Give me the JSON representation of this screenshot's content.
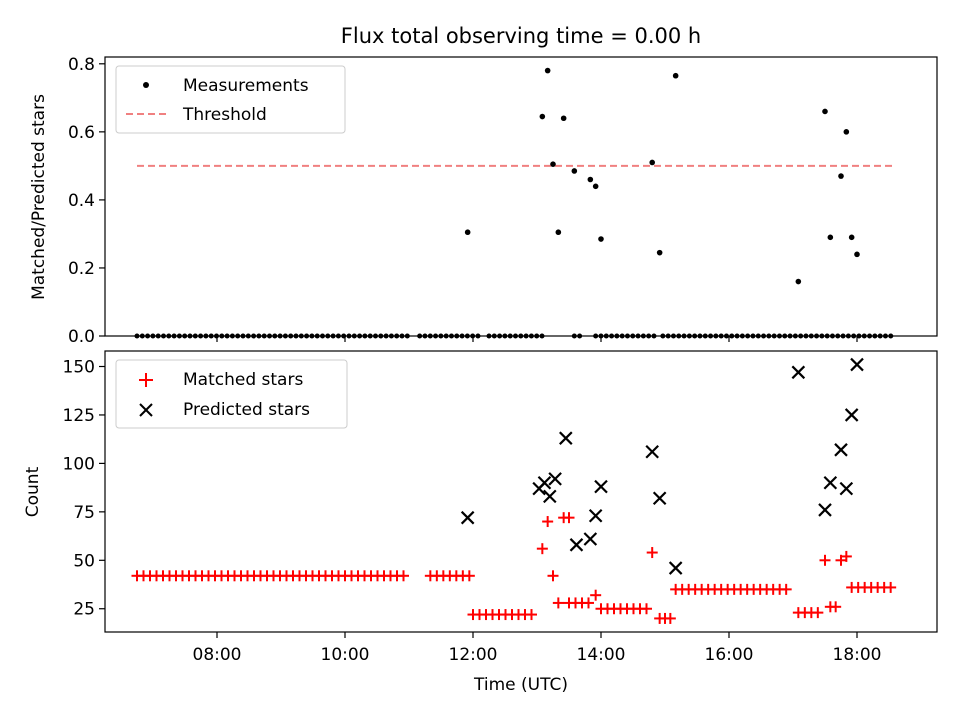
{
  "figure": {
    "title": "Flux total observing time = 0.00 h"
  },
  "colors": {
    "measurement": "#000000",
    "threshold": "#f08080",
    "matched": "#ff0000",
    "predicted": "#000000"
  },
  "chart_data": [
    {
      "type": "scatter",
      "panel": "top",
      "title": "Flux total observing time = 0.00 h",
      "xlabel": "",
      "ylabel": "Matched/Predicted stars",
      "xlim": [
        "06:15",
        "19:15"
      ],
      "ylim": [
        0,
        0.82
      ],
      "yticks": [
        0.0,
        0.2,
        0.4,
        0.6,
        0.8
      ],
      "ytick_labels": [
        "0.0",
        "0.2",
        "0.4",
        "0.6",
        "0.8"
      ],
      "xticks": [
        "08:00",
        "10:00",
        "12:00",
        "14:00",
        "16:00",
        "18:00"
      ],
      "legend": {
        "position": "top-left",
        "entries": [
          "Measurements",
          "Threshold"
        ]
      },
      "threshold": {
        "name": "Threshold",
        "value": 0.5,
        "x_range": [
          "06:45",
          "18:35"
        ]
      },
      "zero_segments": [
        [
          "06:45",
          "11:00"
        ],
        [
          "11:10",
          "12:05"
        ],
        [
          "12:15",
          "13:05"
        ],
        [
          "13:35",
          "13:42"
        ],
        [
          "13:55",
          "14:50"
        ],
        [
          "14:58",
          "18:35"
        ]
      ],
      "series": [
        {
          "name": "Measurements",
          "points": [
            {
              "x": "11:55",
              "y": 0.305
            },
            {
              "x": "13:05",
              "y": 0.645
            },
            {
              "x": "13:10",
              "y": 0.78
            },
            {
              "x": "13:15",
              "y": 0.505
            },
            {
              "x": "13:20",
              "y": 0.305
            },
            {
              "x": "13:25",
              "y": 0.64
            },
            {
              "x": "13:35",
              "y": 0.485
            },
            {
              "x": "13:50",
              "y": 0.46
            },
            {
              "x": "13:55",
              "y": 0.44
            },
            {
              "x": "14:00",
              "y": 0.285
            },
            {
              "x": "14:48",
              "y": 0.51
            },
            {
              "x": "14:55",
              "y": 0.245
            },
            {
              "x": "15:10",
              "y": 0.765
            },
            {
              "x": "17:05",
              "y": 0.16
            },
            {
              "x": "17:30",
              "y": 0.66
            },
            {
              "x": "17:35",
              "y": 0.29
            },
            {
              "x": "17:45",
              "y": 0.47
            },
            {
              "x": "17:50",
              "y": 0.6
            },
            {
              "x": "17:55",
              "y": 0.29
            },
            {
              "x": "18:00",
              "y": 0.24
            }
          ]
        }
      ]
    },
    {
      "type": "scatter",
      "panel": "bottom",
      "xlabel": "Time (UTC)",
      "ylabel": "Count",
      "xlim": [
        "06:15",
        "19:15"
      ],
      "ylim": [
        13,
        158
      ],
      "yticks": [
        25,
        50,
        75,
        100,
        125,
        150
      ],
      "ytick_labels": [
        "25",
        "50",
        "75",
        "100",
        "125",
        "150"
      ],
      "xticks": [
        "08:00",
        "10:00",
        "12:00",
        "14:00",
        "16:00",
        "18:00"
      ],
      "xtick_labels": [
        "08:00",
        "10:00",
        "12:00",
        "14:00",
        "16:00",
        "18:00"
      ],
      "legend": {
        "position": "top-left",
        "entries": [
          "Matched stars",
          "Predicted stars"
        ]
      },
      "series": [
        {
          "name": "Matched stars",
          "marker": "plus",
          "runs": [
            {
              "from": "06:45",
              "to": "11:00",
              "y": 42
            },
            {
              "from": "11:20",
              "to": "12:00",
              "y": 42
            },
            {
              "from": "12:00",
              "to": "13:00",
              "y": 22
            },
            {
              "from": "13:30",
              "to": "13:50",
              "y": 28
            },
            {
              "from": "14:00",
              "to": "14:45",
              "y": 25
            },
            {
              "from": "15:10",
              "to": "16:55",
              "y": 35
            },
            {
              "from": "17:05",
              "to": "17:25",
              "y": 23
            },
            {
              "from": "17:55",
              "to": "18:35",
              "y": 36
            }
          ],
          "points": [
            {
              "x": "13:05",
              "y": 56
            },
            {
              "x": "13:10",
              "y": 70
            },
            {
              "x": "13:15",
              "y": 42
            },
            {
              "x": "13:20",
              "y": 28
            },
            {
              "x": "13:25",
              "y": 72
            },
            {
              "x": "13:30",
              "y": 72
            },
            {
              "x": "13:55",
              "y": 32
            },
            {
              "x": "14:48",
              "y": 54
            },
            {
              "x": "14:55",
              "y": 20
            },
            {
              "x": "15:00",
              "y": 20
            },
            {
              "x": "15:05",
              "y": 20
            },
            {
              "x": "17:30",
              "y": 50
            },
            {
              "x": "17:35",
              "y": 26
            },
            {
              "x": "17:40",
              "y": 26
            },
            {
              "x": "17:45",
              "y": 50
            },
            {
              "x": "17:50",
              "y": 52
            }
          ]
        },
        {
          "name": "Predicted stars",
          "marker": "cross",
          "points": [
            {
              "x": "11:55",
              "y": 72
            },
            {
              "x": "13:02",
              "y": 87
            },
            {
              "x": "13:07",
              "y": 90
            },
            {
              "x": "13:12",
              "y": 83
            },
            {
              "x": "13:17",
              "y": 92
            },
            {
              "x": "13:27",
              "y": 113
            },
            {
              "x": "13:37",
              "y": 58
            },
            {
              "x": "13:50",
              "y": 61
            },
            {
              "x": "13:55",
              "y": 73
            },
            {
              "x": "14:00",
              "y": 88
            },
            {
              "x": "14:48",
              "y": 106
            },
            {
              "x": "14:55",
              "y": 82
            },
            {
              "x": "15:10",
              "y": 46
            },
            {
              "x": "17:05",
              "y": 147
            },
            {
              "x": "17:30",
              "y": 76
            },
            {
              "x": "17:35",
              "y": 90
            },
            {
              "x": "17:45",
              "y": 107
            },
            {
              "x": "17:50",
              "y": 87
            },
            {
              "x": "17:55",
              "y": 125
            },
            {
              "x": "18:00",
              "y": 151
            }
          ]
        }
      ]
    }
  ]
}
